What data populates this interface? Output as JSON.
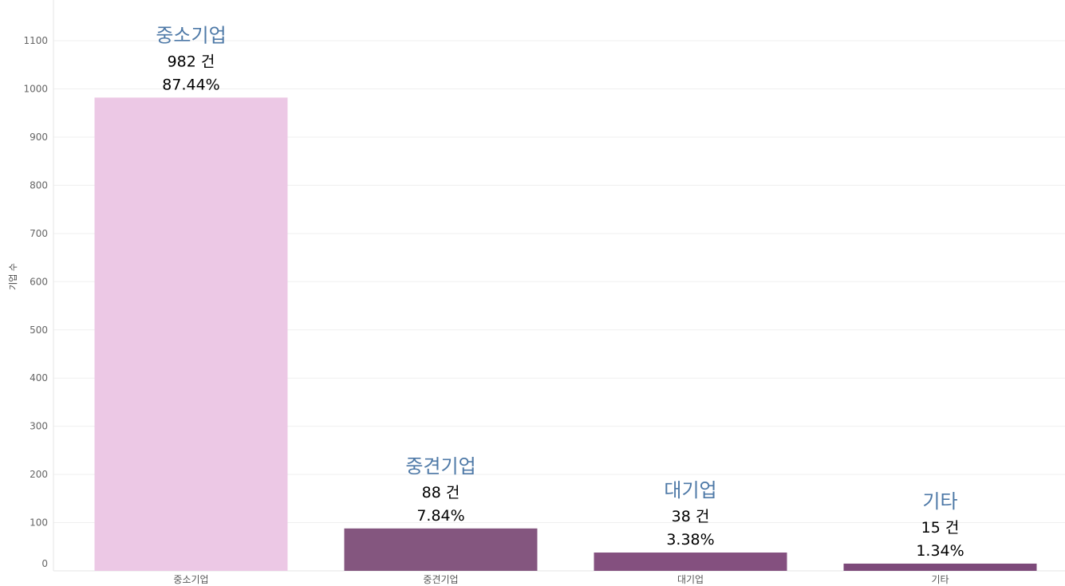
{
  "chart_data": {
    "type": "bar",
    "categories": [
      "중소기업",
      "중견기업",
      "대기업",
      "기타"
    ],
    "values": [
      982,
      88,
      38,
      15
    ],
    "count_labels": [
      "982 건",
      "88 건",
      "38 건",
      "15 건"
    ],
    "percent_labels": [
      "87.44%",
      "7.84%",
      "3.38%",
      "1.34%"
    ],
    "bar_colors": [
      "#ecc8e5",
      "#84567f",
      "#84507f",
      "#7d4a7a"
    ],
    "title": "",
    "xlabel": "",
    "ylabel": "기업 수",
    "ylim": [
      0,
      1100
    ],
    "yticks": [
      0,
      100,
      200,
      300,
      400,
      500,
      600,
      700,
      800,
      900,
      1000,
      1100
    ],
    "grid": true,
    "legend": "none"
  }
}
